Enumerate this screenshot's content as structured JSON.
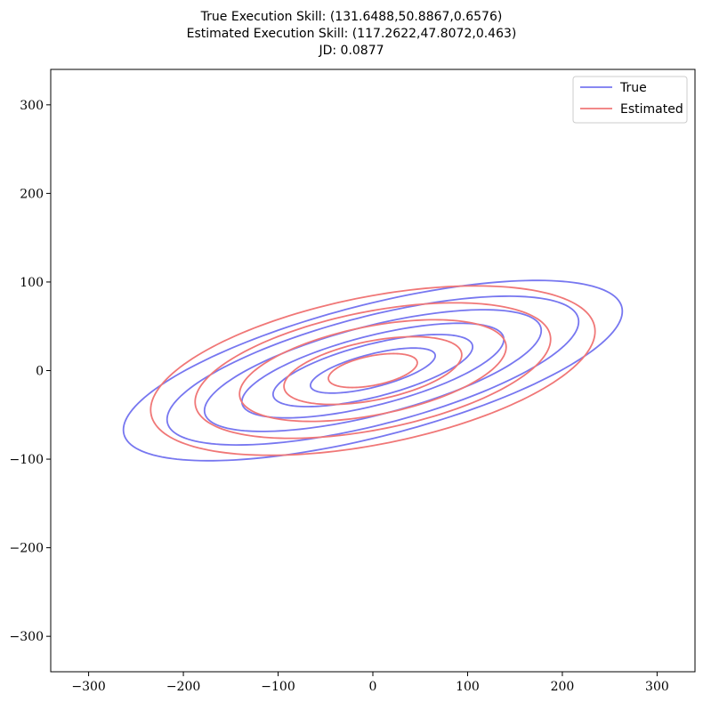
{
  "chart_data": {
    "type": "line",
    "title_lines": [
      "True Execution Skill: (131.6488,50.8867,0.6576)",
      "Estimated Execution Skill: (117.2622,47.8072,0.463)",
      "JD: 0.0877"
    ],
    "xlabel": "",
    "ylabel": "",
    "xlim": [
      -340,
      340
    ],
    "ylim": [
      -340,
      340
    ],
    "xticks": [
      -300,
      -200,
      -100,
      0,
      100,
      200,
      300
    ],
    "yticks": [
      -300,
      -200,
      -100,
      0,
      100,
      200,
      300
    ],
    "xtick_labels": [
      "−300",
      "−200",
      "−100",
      "0",
      "100",
      "200",
      "300"
    ],
    "ytick_labels": [
      "−300",
      "−200",
      "−100",
      "0",
      "100",
      "200",
      "300"
    ],
    "grid": false,
    "legend_position": "top-right",
    "series": [
      {
        "name": "True",
        "color": "#7777f0",
        "sigma_x": 131.6488,
        "sigma_y": 50.8867,
        "rho": 0.6576,
        "contour_radii": [
          0.5,
          0.8,
          1.05,
          1.35,
          1.65,
          2.0
        ]
      },
      {
        "name": "Estimated",
        "color": "#f07777",
        "sigma_x": 117.2622,
        "sigma_y": 47.8072,
        "rho": 0.463,
        "contour_radii": [
          0.4,
          0.8,
          1.2,
          1.6,
          2.0
        ]
      }
    ]
  }
}
